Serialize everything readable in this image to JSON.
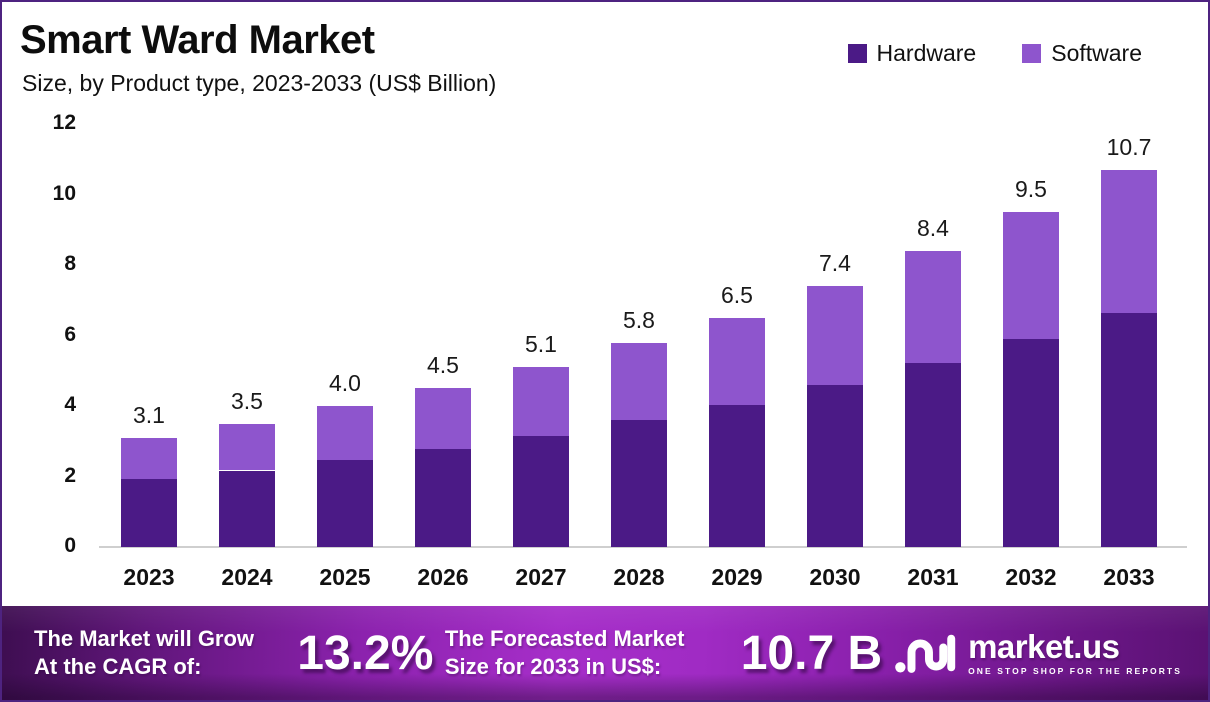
{
  "header": {
    "title": "Smart Ward Market",
    "subtitle": "Size, by Product type, 2023-2033 (US$ Billion)"
  },
  "legend": [
    {
      "label": "Hardware",
      "color": "#4b1a86"
    },
    {
      "label": "Software",
      "color": "#8e55cd"
    }
  ],
  "chart_data": {
    "type": "bar",
    "stacked": true,
    "title": "Smart Ward Market Size, by Product type, 2023-2033 (US$ Billion)",
    "categories": [
      "2023",
      "2024",
      "2025",
      "2026",
      "2027",
      "2028",
      "2029",
      "2030",
      "2031",
      "2032",
      "2033"
    ],
    "series": [
      {
        "name": "Hardware",
        "color": "#4b1a86",
        "values": [
          1.92,
          2.17,
          2.48,
          2.79,
          3.16,
          3.6,
          4.03,
          4.59,
          5.21,
          5.89,
          6.63
        ]
      },
      {
        "name": "Software",
        "color": "#8e55cd",
        "values": [
          1.18,
          1.33,
          1.52,
          1.71,
          1.94,
          2.2,
          2.47,
          2.81,
          3.19,
          3.61,
          4.07
        ]
      }
    ],
    "total_labels": [
      "3.1",
      "3.5",
      "4.0",
      "4.5",
      "5.1",
      "5.8",
      "6.5",
      "7.4",
      "8.4",
      "9.5",
      "10.7"
    ],
    "xlabel": "",
    "ylabel": "",
    "ylim": [
      0,
      12
    ],
    "yticks": [
      0,
      2,
      4,
      6,
      8,
      10,
      12
    ],
    "grid": false,
    "legend_position": "top-right"
  },
  "footer": {
    "cagr_label_line1": "The Market will Grow",
    "cagr_label_line2": "At the CAGR of:",
    "cagr_value": "13.2%",
    "forecast_label_line1": "The Forecasted Market",
    "forecast_label_line2": "Size for 2033 in US$:",
    "forecast_value": "10.7 B",
    "brand": {
      "name": "market.us",
      "tagline": "ONE STOP SHOP FOR THE REPORTS"
    }
  }
}
